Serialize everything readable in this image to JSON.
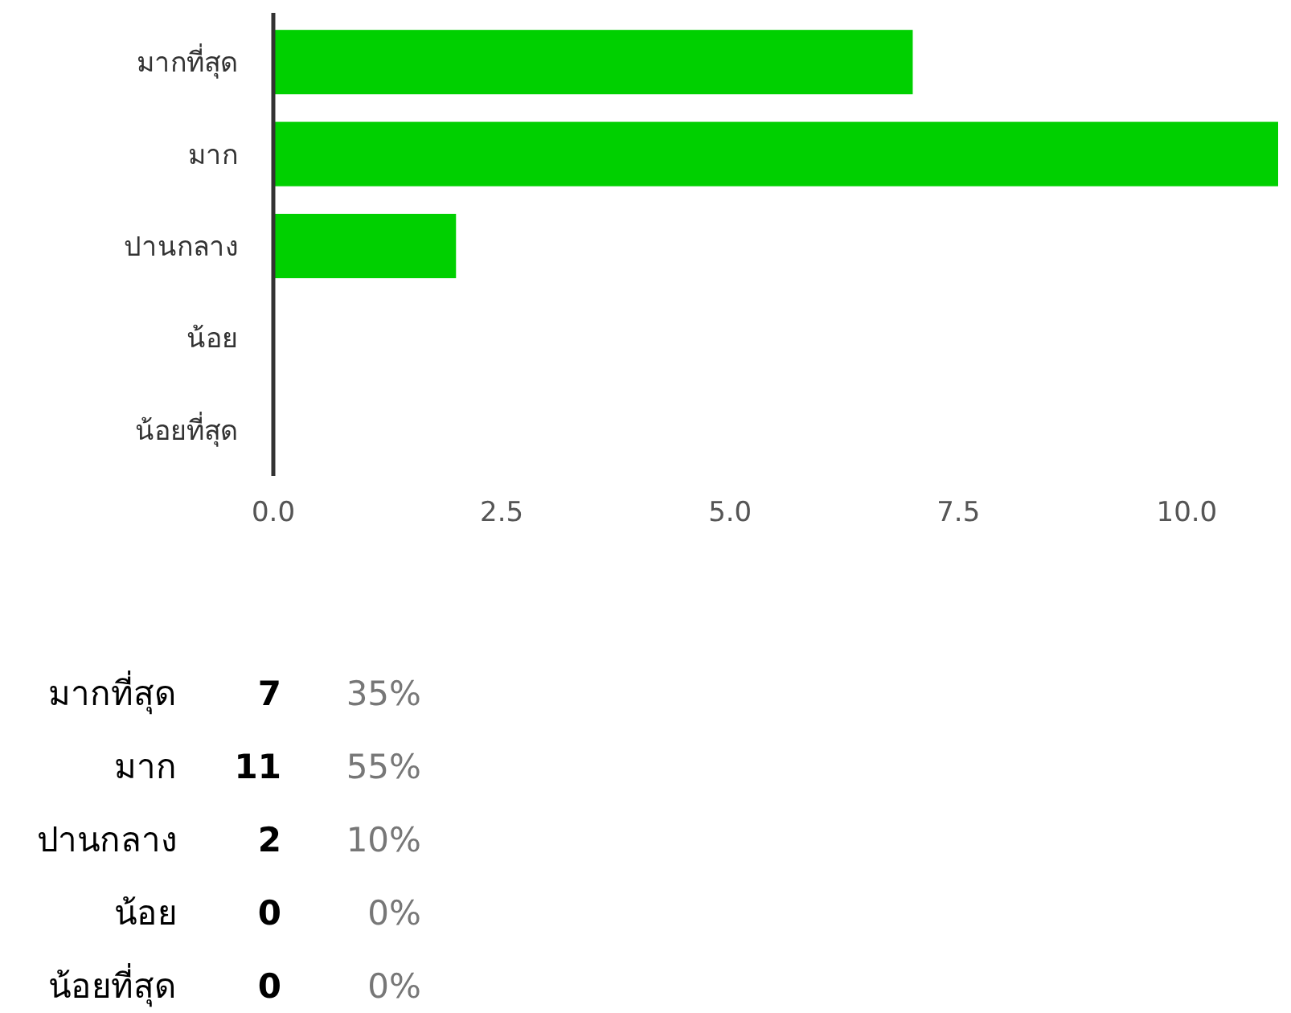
{
  "chart_data": {
    "type": "bar",
    "orientation": "horizontal",
    "categories": [
      "มากที่สุด",
      "มาก",
      "ปานกลาง",
      "น้อย",
      "น้อยที่สุด"
    ],
    "values": [
      7,
      11,
      2,
      0,
      0
    ],
    "color": "#00d000",
    "xlim": [
      0,
      11
    ],
    "xticks": [
      {
        "value": 0,
        "label": "0.0"
      },
      {
        "value": 2.5,
        "label": "2.5"
      },
      {
        "value": 5,
        "label": "5.0"
      },
      {
        "value": 7.5,
        "label": "7.5"
      },
      {
        "value": 10,
        "label": "10.0"
      }
    ],
    "grid": false,
    "annotations": [
      "7",
      "35%",
      "11",
      "55%",
      "2",
      "10%",
      "0",
      "0%",
      "0",
      "0%"
    ]
  }
}
